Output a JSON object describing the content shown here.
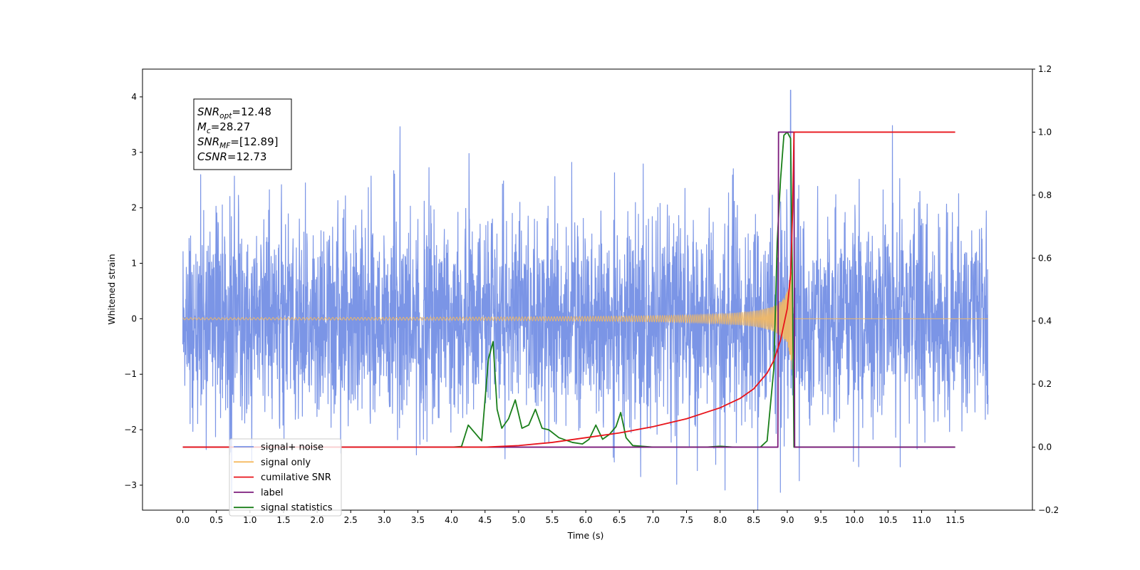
{
  "chart_data": {
    "type": "line",
    "xlabel": "Time (s)",
    "ylabel": "Whitened strain",
    "xlim": [
      -0.6,
      12.65
    ],
    "ylim": [
      -3.45,
      4.5
    ],
    "y2lim": [
      -0.2,
      1.2
    ],
    "x_ticks": [
      "0.0",
      "0.5",
      "1.0",
      "1.5",
      "2.0",
      "2.5",
      "3.0",
      "3.5",
      "4.0",
      "4.5",
      "5.0",
      "5.5",
      "6.0",
      "6.5",
      "7.0",
      "7.5",
      "8.0",
      "8.5",
      "9.0",
      "9.5",
      "10.0",
      "10.5",
      "11.0",
      "11.5"
    ],
    "y_ticks": [
      "4",
      "3",
      "2",
      "1",
      "0",
      "−1",
      "−2",
      "−3"
    ],
    "y2_ticks": [
      "1.2",
      "1.0",
      "0.8",
      "0.6",
      "0.4",
      "0.2",
      "0.0",
      "−0.2"
    ],
    "annotation": [
      {
        "name": "SNR",
        "sub": "opt",
        "rest": "=12.48"
      },
      {
        "name": "M",
        "sub": "c",
        "rest": "=28.27"
      },
      {
        "name": "SNR",
        "sub": "MF",
        "rest": "=[12.89]"
      },
      {
        "name": "CSNR",
        "sub": "",
        "rest": "=12.73"
      }
    ],
    "legend_position": "lower-left",
    "series": [
      {
        "name": "signal+ noise",
        "axis": "left",
        "color": "#7b95e6",
        "description": "whitened noise, amplitude ~ +/-2, peak 4.1 at 9.05s"
      },
      {
        "name": "signal only",
        "axis": "left",
        "color": "#f5b95f",
        "description": "chirp growing to ~0.6 near merger at 9.08s"
      },
      {
        "name": "cumilative SNR",
        "axis": "right",
        "color": "#e8141b",
        "x": [
          0.0,
          3.5,
          4.5,
          5.0,
          5.5,
          6.0,
          6.5,
          7.0,
          7.5,
          8.0,
          8.3,
          8.5,
          8.7,
          8.8,
          8.9,
          9.0,
          9.05,
          9.08,
          9.1,
          11.5
        ],
        "y": [
          0.0,
          0.0,
          0.0,
          0.005,
          0.015,
          0.03,
          0.045,
          0.065,
          0.09,
          0.125,
          0.155,
          0.185,
          0.235,
          0.275,
          0.34,
          0.44,
          0.55,
          0.75,
          1.0,
          1.0
        ]
      },
      {
        "name": "label",
        "axis": "right",
        "color": "#7b1a7b",
        "x": [
          0.0,
          8.86,
          8.87,
          9.1,
          9.11,
          11.5
        ],
        "y": [
          0.0,
          0.0,
          1.0,
          1.0,
          0.0,
          0.0
        ]
      },
      {
        "name": "signal statistics",
        "axis": "right",
        "color": "#1a7f1a",
        "x": [
          0.0,
          3.5,
          4.0,
          4.15,
          4.25,
          4.35,
          4.45,
          4.55,
          4.62,
          4.68,
          4.75,
          4.85,
          4.95,
          5.05,
          5.15,
          5.25,
          5.35,
          5.45,
          5.6,
          5.8,
          5.95,
          6.05,
          6.15,
          6.25,
          6.35,
          6.45,
          6.52,
          6.6,
          6.7,
          7.0,
          7.5,
          7.8,
          8.0,
          8.2,
          8.6,
          8.7,
          8.8,
          8.85,
          8.9,
          8.95,
          9.0,
          9.05,
          9.08,
          9.1,
          11.5
        ],
        "y": [
          0.0,
          0.0,
          0.0,
          0.002,
          0.07,
          0.045,
          0.02,
          0.28,
          0.335,
          0.12,
          0.06,
          0.09,
          0.15,
          0.06,
          0.07,
          0.12,
          0.06,
          0.055,
          0.03,
          0.015,
          0.01,
          0.025,
          0.07,
          0.025,
          0.04,
          0.065,
          0.11,
          0.03,
          0.005,
          0.0,
          0.0,
          0.0,
          0.003,
          0.0,
          0.0,
          0.02,
          0.25,
          0.65,
          0.85,
          0.99,
          1.0,
          0.98,
          0.45,
          0.0,
          0.0
        ]
      }
    ]
  },
  "legend": {
    "items": [
      {
        "label": "signal+ noise",
        "color": "#7b95e6"
      },
      {
        "label": "signal only",
        "color": "#f5b95f"
      },
      {
        "label": "cumilative SNR",
        "color": "#e8141b"
      },
      {
        "label": "label",
        "color": "#7b1a7b"
      },
      {
        "label": "signal statistics",
        "color": "#1a7f1a"
      }
    ]
  }
}
